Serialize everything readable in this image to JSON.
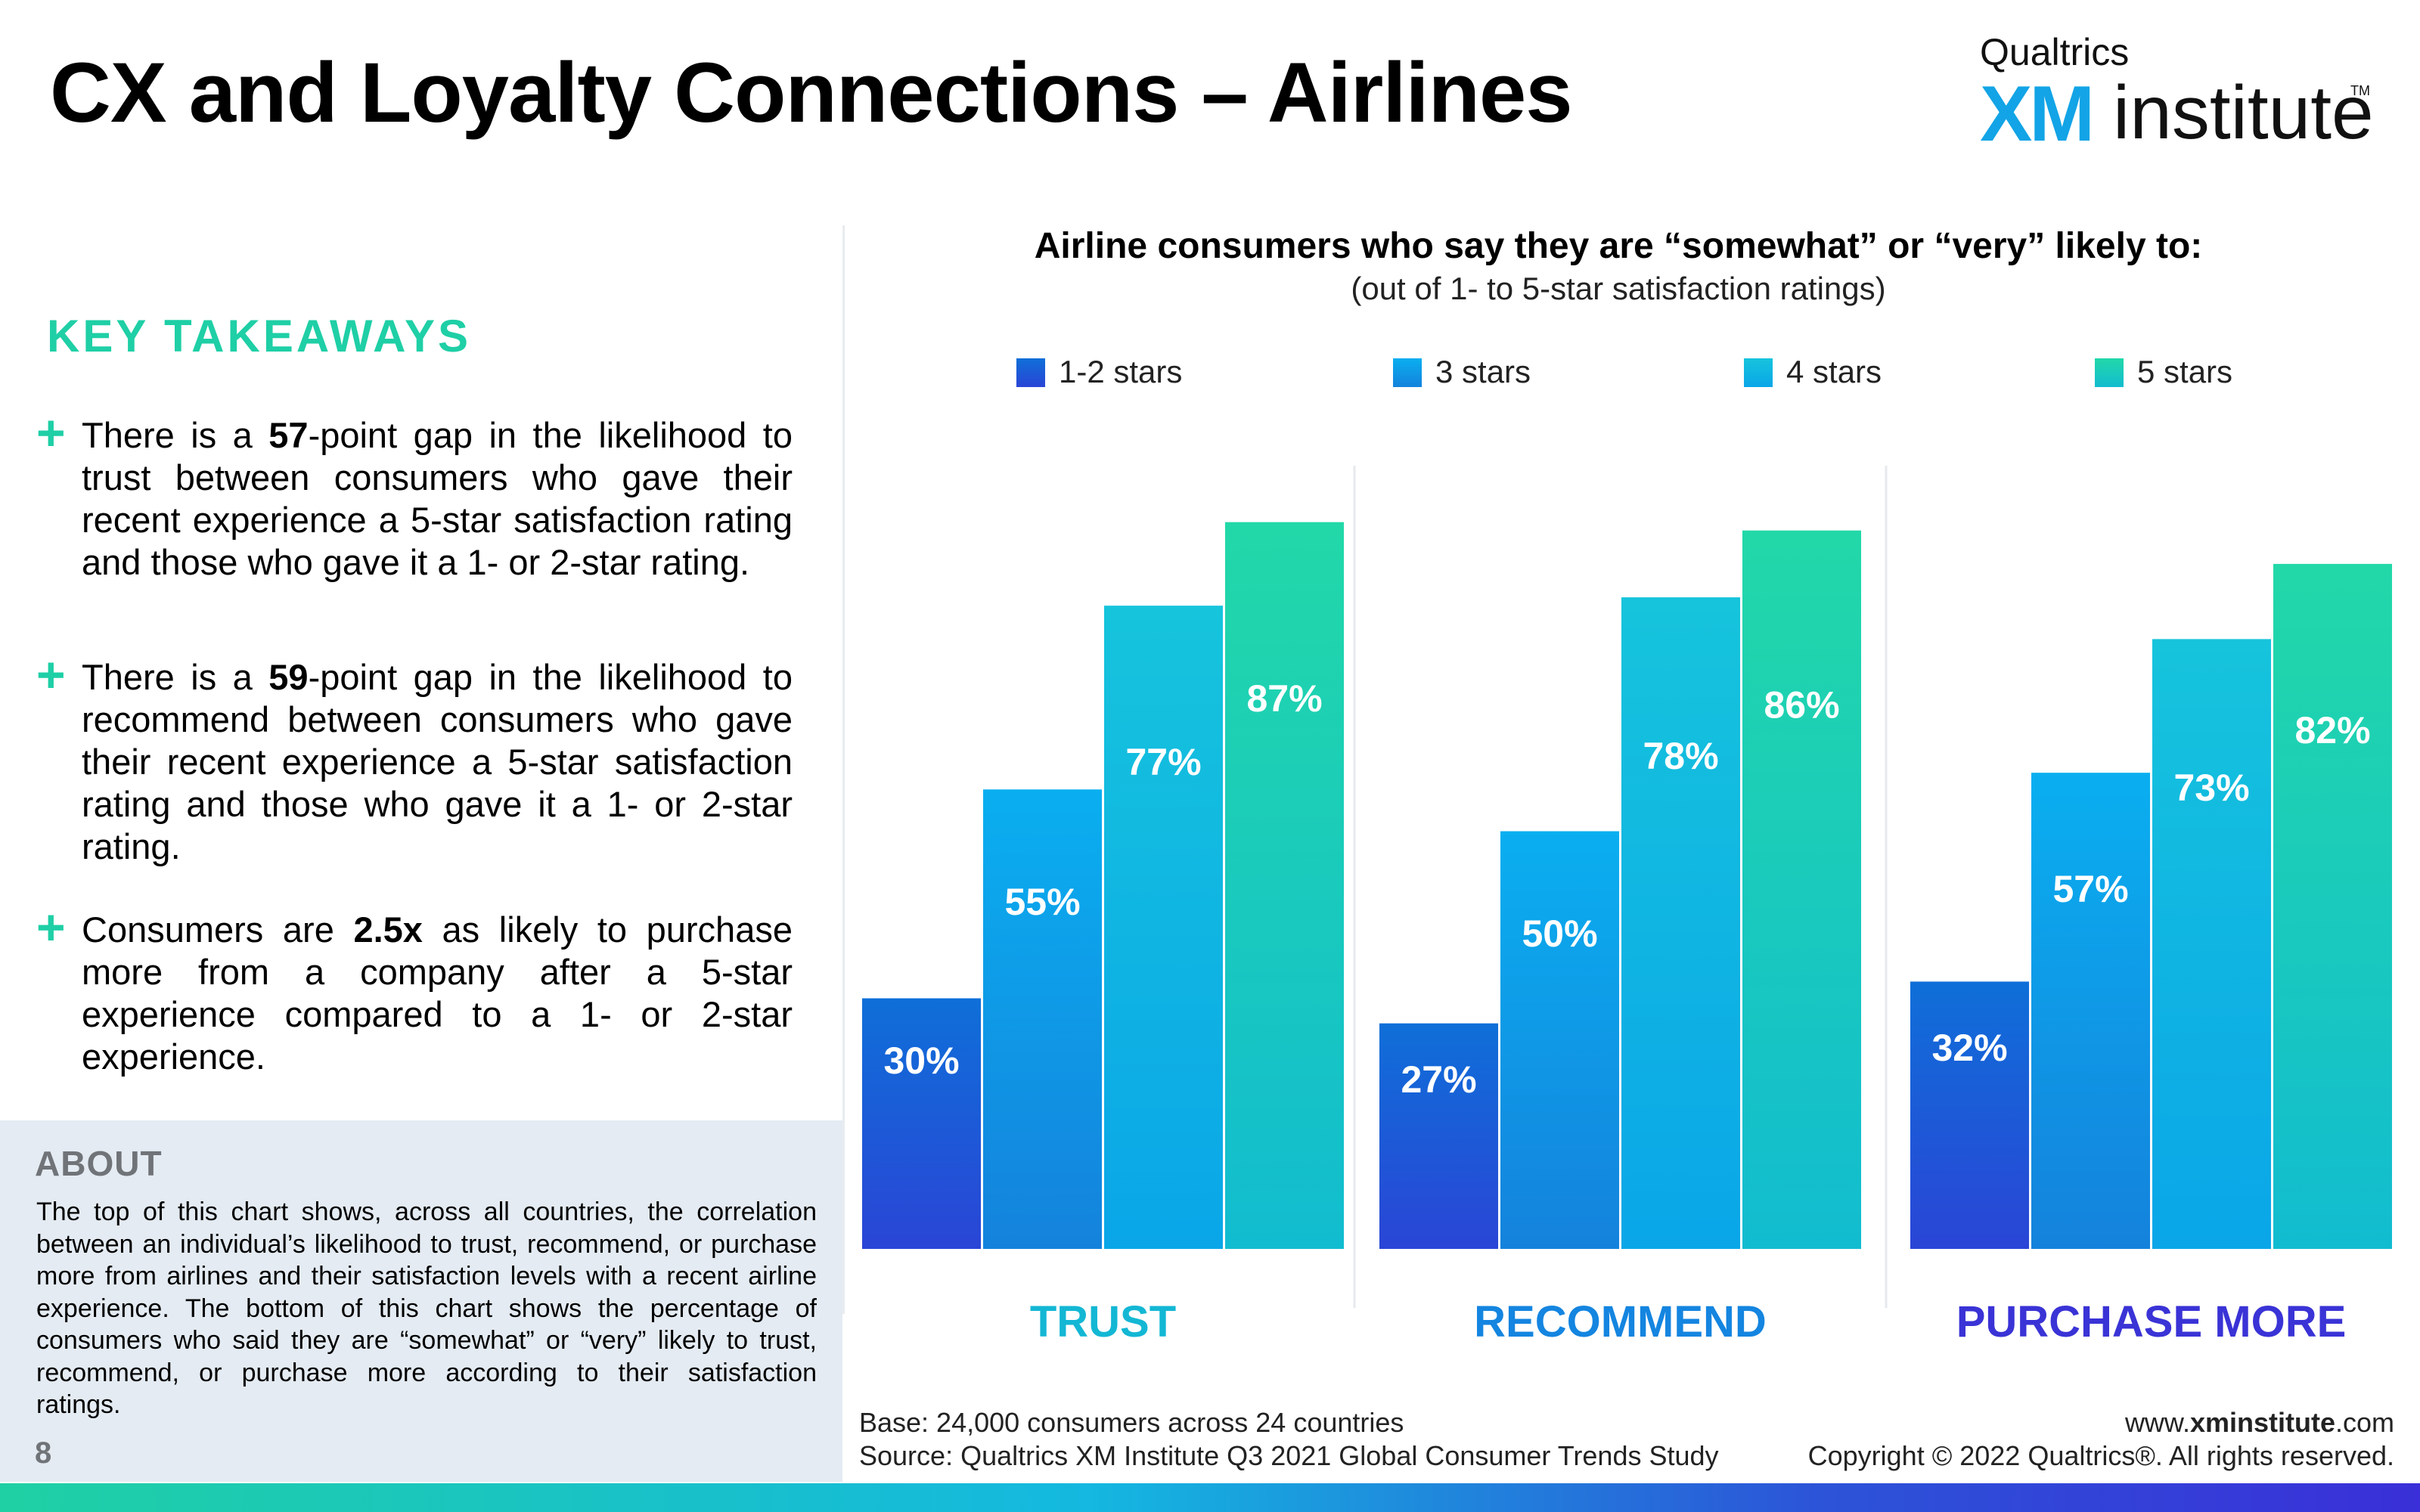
{
  "header": {
    "title": "CX and Loyalty Connections – Airlines",
    "logo": {
      "brand": "Qualtrics",
      "mark": "XM",
      "product": "institute",
      "tm": "TM"
    }
  },
  "takeaways": {
    "heading": "KEY TAKEAWAYS",
    "items": [
      {
        "pre": "There is a ",
        "bold": "57",
        "post": "-point gap in the likelihood to trust between consumers who gave their recent experience a 5-star satisfaction rating and those who gave it a 1- or 2-star rating."
      },
      {
        "pre": "There is a  ",
        "bold": "59",
        "post": "-point gap in the likelihood to recommend between consumers who gave their recent experience a 5-star satisfaction rating and those who gave it a 1- or 2-star rating."
      },
      {
        "pre": "Consumers are ",
        "bold": "2.5x",
        "post": " as likely to purchase more from a company after a 5-star experience compared to a 1- or 2-star experience."
      }
    ]
  },
  "about": {
    "heading": "ABOUT",
    "text": "The top of this chart shows, across all countries, the correlation between an individual’s likelihood to trust, recommend, or purchase more from airlines and their satisfaction levels with a recent airline experience. The bottom of this chart shows the percentage of consumers who said they are “somewhat” or “very” likely to trust, recommend, or purchase more according to their satisfaction ratings."
  },
  "page_number": "8",
  "chart_data": {
    "type": "bar",
    "title": "Airline consumers who say they are “somewhat” or “very” likely to:",
    "subtitle": "(out of 1- to 5-star satisfaction ratings)",
    "categories": [
      "TRUST",
      "RECOMMEND",
      "PURCHASE MORE"
    ],
    "category_colors": [
      "#13b7d4",
      "#1485e0",
      "#3a33d6"
    ],
    "series": [
      {
        "name": "1-2 stars",
        "values": [
          30,
          27,
          32
        ],
        "color_top": "#0f6fd8",
        "color_bottom": "#2a45d6",
        "labels": [
          "30%",
          "27%",
          "32%"
        ]
      },
      {
        "name": "3 stars",
        "values": [
          55,
          50,
          57
        ],
        "color_top": "#0aaff0",
        "color_bottom": "#1482dc",
        "labels": [
          "55%",
          "50%",
          "57%"
        ]
      },
      {
        "name": "4 stars",
        "values": [
          77,
          78,
          73
        ],
        "color_top": "#16c4dc",
        "color_bottom": "#0aa6e8",
        "labels": [
          "77%",
          "78%",
          "73%"
        ]
      },
      {
        "name": "5 stars",
        "values": [
          87,
          86,
          82
        ],
        "color_top": "#22d8a8",
        "color_bottom": "#12bcd0",
        "labels": [
          "87%",
          "86%",
          "82%"
        ]
      }
    ],
    "ylim": [
      0,
      100
    ],
    "legend_position": "top",
    "grid": false
  },
  "footer": {
    "base": "Base: 24,000 consumers across 24 countries",
    "source": "Source: Qualtrics XM Institute Q3 2021 Global Consumer Trends Study",
    "url_pre": "www.",
    "url_bold": "xminstitute",
    "url_post": ".com",
    "copyright": "Copyright © 2022 Qualtrics®. All rights reserved."
  }
}
